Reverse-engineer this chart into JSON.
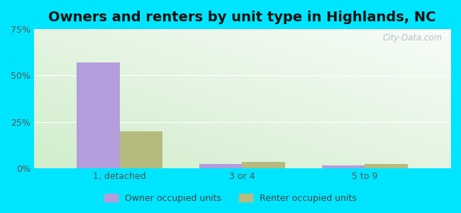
{
  "title": "Owners and renters by unit type in Highlands, NC",
  "categories": [
    "1, detached",
    "3 or 4",
    "5 to 9"
  ],
  "owner_values": [
    57,
    2.2,
    1.5
  ],
  "renter_values": [
    20,
    3.5,
    2.5
  ],
  "owner_color": "#b39ddb",
  "renter_color": "#b5bb7e",
  "ylim": [
    0,
    75
  ],
  "yticks": [
    0,
    25,
    50,
    75
  ],
  "ytick_labels": [
    "0%",
    "25%",
    "50%",
    "75%"
  ],
  "legend_owner": "Owner occupied units",
  "legend_renter": "Renter occupied units",
  "bg_outer": "#00e5ff",
  "bar_width": 0.35,
  "title_fontsize": 14,
  "tick_fontsize": 9,
  "legend_fontsize": 9,
  "watermark": "City-Data.com"
}
